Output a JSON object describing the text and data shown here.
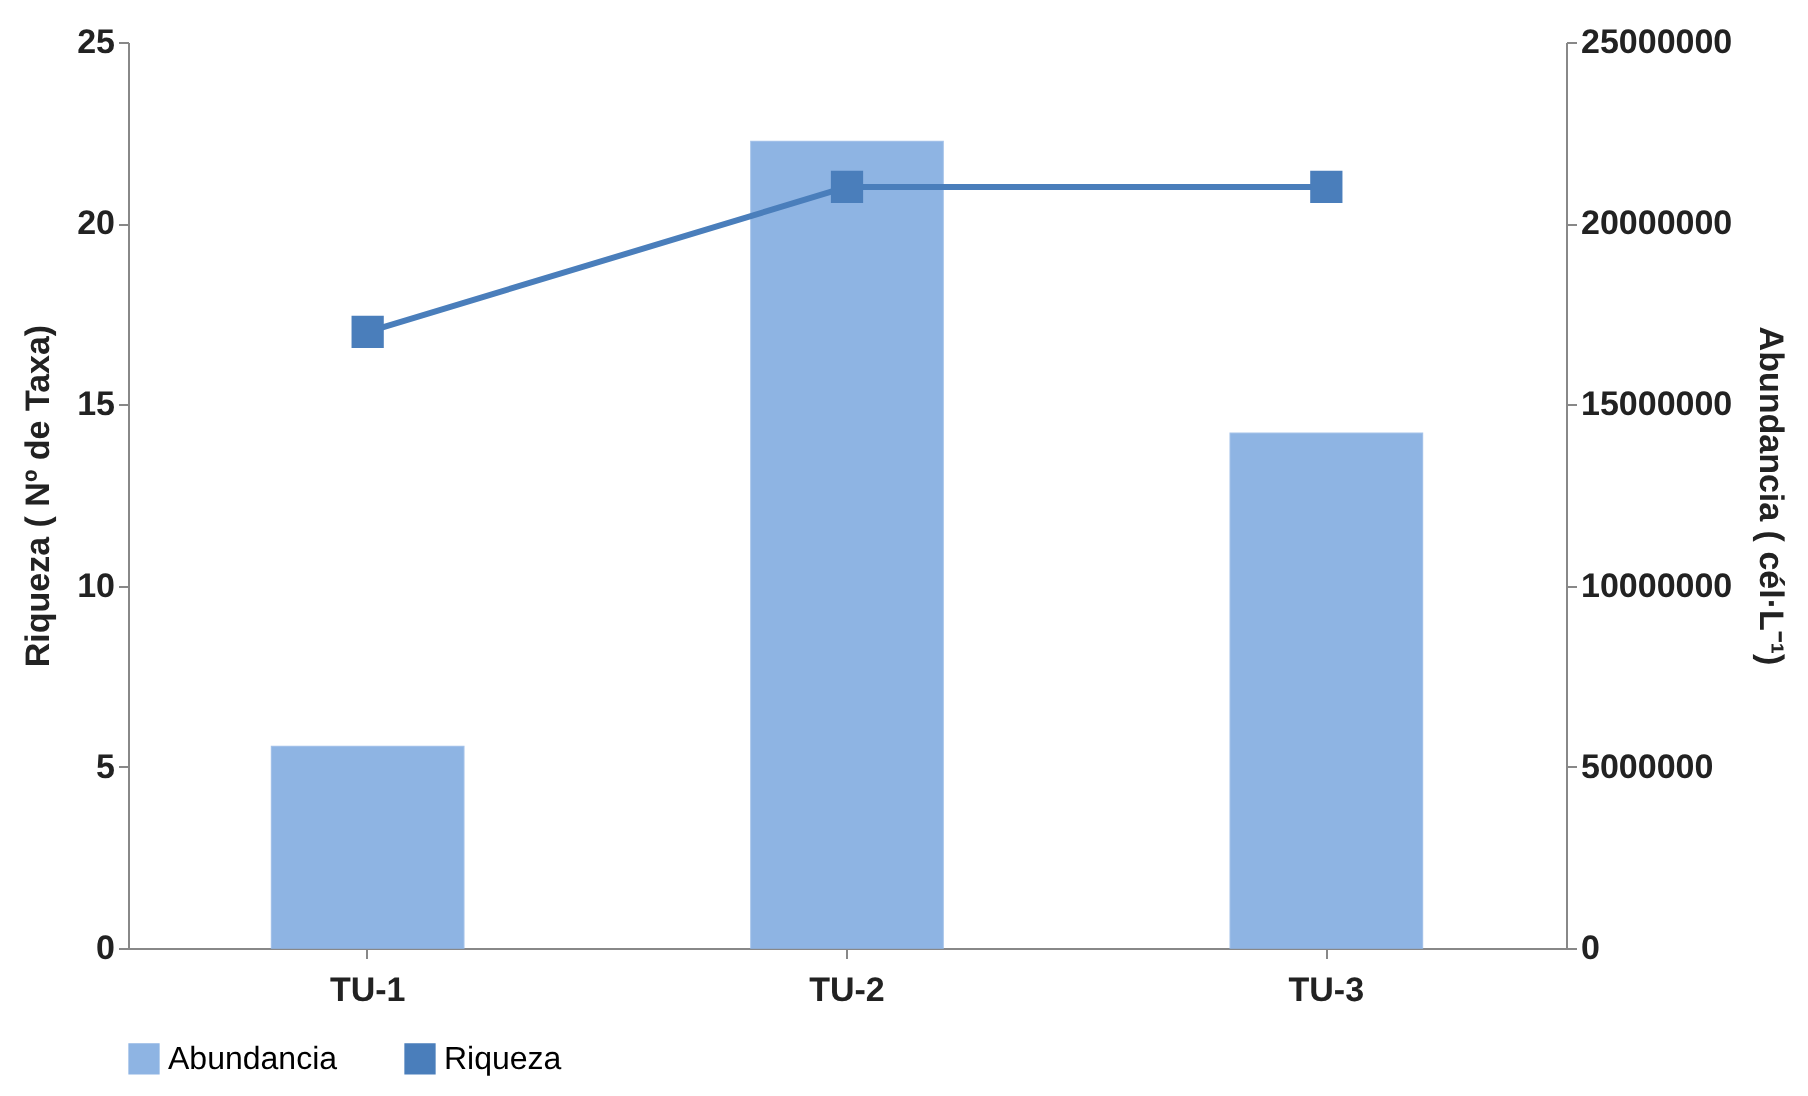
{
  "chart_data": {
    "type": "bar",
    "categories": [
      "TU-1",
      "TU-2",
      "TU-3"
    ],
    "series": [
      {
        "name": "Abundancia",
        "axis": "y2",
        "color": "#8eb4e3",
        "values": [
          5550000,
          22250000,
          14200000
        ]
      },
      {
        "name": "Riqueza",
        "type": "line",
        "color": "#4a7ebb",
        "values": [
          17,
          21,
          21
        ]
      }
    ],
    "ylabel": "Riqueza ( Nº de Taxa)",
    "y2label": "Abundancia ( cél·L⁻¹)",
    "ylim": [
      0,
      25
    ],
    "yticks": [
      0,
      5,
      10,
      15,
      20,
      25
    ],
    "y2lim": [
      0,
      25000000
    ],
    "y2ticks": [
      0,
      5000000,
      10000000,
      15000000,
      20000000,
      25000000
    ],
    "marker": "square",
    "legend": "bottom",
    "grid": false
  }
}
